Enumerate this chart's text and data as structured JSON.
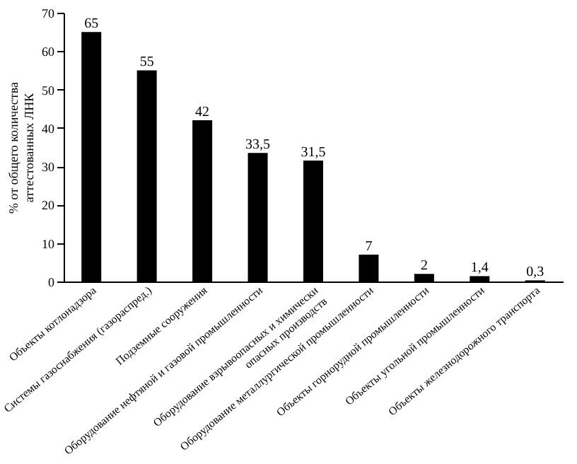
{
  "chart_data": {
    "type": "bar",
    "categories": [
      "Объекты котлонадзора",
      "Системы газоснабжения (газораспред.)",
      "Подземные сооружения",
      "Оборудование нефтяной и газовой промышленности",
      "Оборудование взрывоопасных и химически\nопасных производств",
      "Оборудование металлургической промышленности",
      "Объекты горнорудной промышленности",
      "Объекты угольной промышленности",
      "Объекты железнодорожного транспорта"
    ],
    "values": [
      65,
      55,
      42,
      33.5,
      31.5,
      7,
      2,
      1.4,
      0.3
    ],
    "value_labels": [
      "65",
      "55",
      "42",
      "33,5",
      "31,5",
      "7",
      "2",
      "1,4",
      "0,3"
    ],
    "color": "#000000",
    "ylabel": "% от общего количества\nаттестованных ЛНК",
    "ylim": [
      0,
      70
    ],
    "yticks": [
      0,
      10,
      20,
      30,
      40,
      50,
      60,
      70
    ],
    "grid": false
  }
}
